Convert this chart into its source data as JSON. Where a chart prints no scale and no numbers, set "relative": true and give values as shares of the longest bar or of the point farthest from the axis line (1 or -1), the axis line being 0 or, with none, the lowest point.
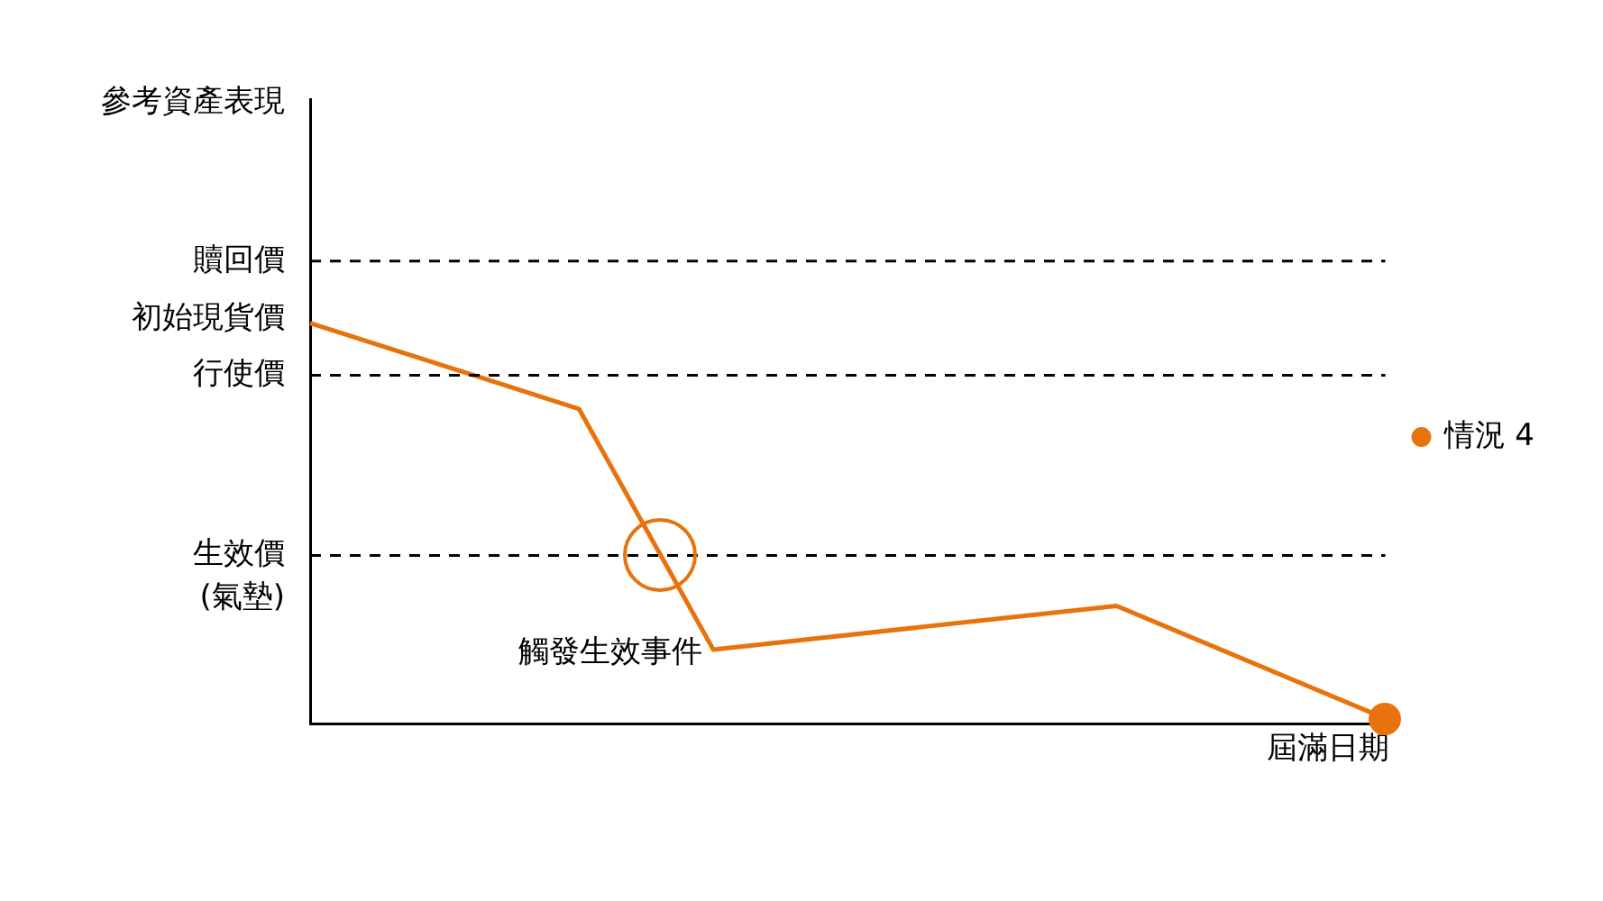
{
  "chart_data": {
    "type": "line",
    "relative": true,
    "xlabel": "屆滿日期",
    "categories": [
      null,
      null,
      null,
      null,
      null,
      null,
      null,
      null,
      null
    ],
    "series": [
      {
        "name": "情況 4",
        "color": "#e8730c",
        "values": [
          1,
          null,
          0.786,
          0.185,
          null,
          null,
          0.294,
          null,
          0.013
        ]
      }
    ],
    "ref_lines": [
      {
        "axis": "y",
        "value": 1.155,
        "label": "贖回價",
        "line_style": "dashed",
        "color": "#000000"
      },
      {
        "axis": "y",
        "value": 0.87,
        "label": "行使價",
        "line_style": "dashed",
        "color": "#000000"
      },
      {
        "axis": "y",
        "value": 0.42,
        "label": "生效價\n(氣墊)",
        "line_style": "dashed",
        "color": "#000000"
      }
    ],
    "annotations": [
      "參考資產表現",
      "初始現貨價",
      "觸發生效事件"
    ],
    "legend": "right",
    "line_style": "solid",
    "grid": false
  }
}
